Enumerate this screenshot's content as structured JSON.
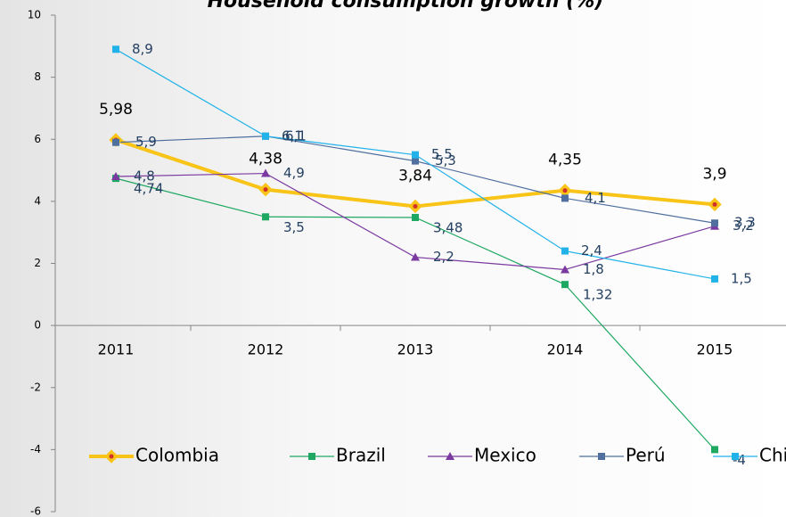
{
  "chart_data": {
    "type": "line",
    "title": "Household consumption growth (%)",
    "categories": [
      "2011",
      "2012",
      "2013",
      "2014",
      "2015"
    ],
    "ylim": [
      -6,
      10
    ],
    "yticks": [
      -6,
      -4,
      -2,
      0,
      2,
      4,
      6,
      8,
      10
    ],
    "legend": "bottom",
    "series": [
      {
        "name": "Colombia",
        "color": "#f9c418",
        "values": [
          5.98,
          4.38,
          3.84,
          4.35,
          3.9
        ],
        "value_labels": [
          "5,98",
          "4,38",
          "3,84",
          "4,35",
          "3,9"
        ]
      },
      {
        "name": "Brazil",
        "color": "#1ea861",
        "values": [
          4.74,
          3.5,
          3.48,
          1.32,
          -4
        ],
        "value_labels": [
          "4,74",
          "3,5",
          "3,48",
          "1,32",
          "-4"
        ]
      },
      {
        "name": "Mexico",
        "color": "#7b3aa0",
        "values": [
          4.8,
          4.9,
          2.2,
          1.8,
          3.2
        ],
        "value_labels": [
          "4,8",
          "4,9",
          "2,2",
          "1,8",
          "3,2"
        ]
      },
      {
        "name": "Perú",
        "color": "#4f6f9f",
        "values": [
          5.9,
          6.1,
          5.3,
          4.1,
          3.3
        ],
        "value_labels": [
          "5,9",
          "6,1",
          "5,3",
          "4,1",
          "3,3"
        ]
      },
      {
        "name": "Chile",
        "color": "#20b2e8",
        "values": [
          8.9,
          6.1,
          5.5,
          2.4,
          1.5
        ],
        "value_labels": [
          "8,9",
          "6,1",
          "5,5",
          "2,4",
          "1,5"
        ]
      }
    ]
  }
}
